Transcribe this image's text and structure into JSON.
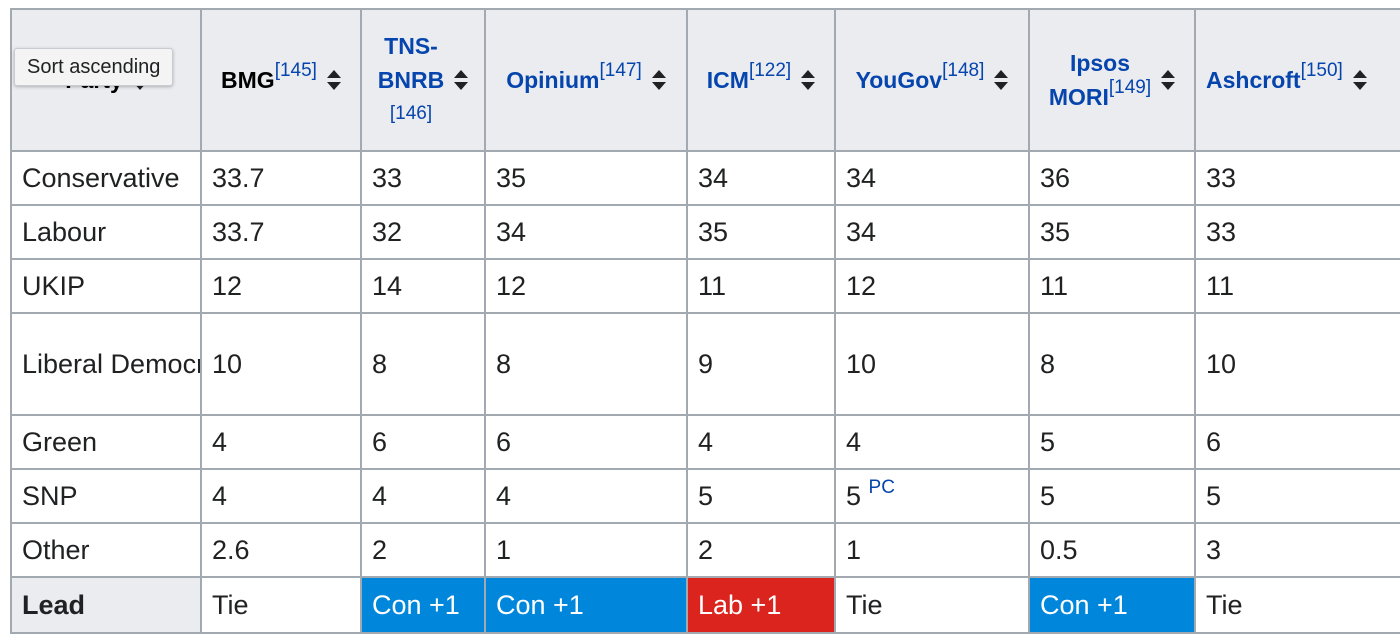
{
  "tooltip": "Sort ascending",
  "header": {
    "party": "Party",
    "pollsters": [
      {
        "name": "BMG",
        "ref": "[145]",
        "link": false
      },
      {
        "name_line1": "TNS-",
        "name_line2": "BNRB",
        "ref": "[146]",
        "link": true
      },
      {
        "name": "Opinium",
        "ref": "[147]",
        "link": true
      },
      {
        "name": "ICM",
        "ref": "[122]",
        "link": true
      },
      {
        "name": "YouGov",
        "ref": "[148]",
        "link": true
      },
      {
        "name_line1": "Ipsos",
        "name_line2": "MORI",
        "ref": "[149]",
        "link": true
      },
      {
        "name": "Ashcroft",
        "ref": "[150]",
        "link": true
      }
    ]
  },
  "rows": [
    {
      "party": "Conservative",
      "values": [
        "33.7",
        "33",
        "35",
        "34",
        "34",
        "36",
        "33"
      ]
    },
    {
      "party": "Labour",
      "values": [
        "33.7",
        "32",
        "34",
        "35",
        "34",
        "35",
        "33"
      ]
    },
    {
      "party": "UKIP",
      "values": [
        "12",
        "14",
        "12",
        "11",
        "12",
        "11",
        "11"
      ]
    },
    {
      "party": "Liberal Democrats",
      "values": [
        "10",
        "8",
        "8",
        "9",
        "10",
        "8",
        "10"
      ]
    },
    {
      "party": "Green",
      "values": [
        "4",
        "6",
        "6",
        "4",
        "4",
        "5",
        "6"
      ]
    },
    {
      "party": "SNP",
      "values": [
        "4",
        "4",
        "4",
        "5",
        "5",
        "5",
        "5"
      ],
      "notes": {
        "youGovNote": "PC"
      }
    },
    {
      "party": "Other",
      "values": [
        "2.6",
        "2",
        "1",
        "2",
        "1",
        "0.5",
        "3"
      ]
    }
  ],
  "lead": {
    "label": "Lead",
    "values": [
      "Tie",
      "Con +1",
      "Con +1",
      "Lab +1",
      "Tie",
      "Con +1",
      "Tie"
    ]
  },
  "colors": {
    "conservative": "#0087dc",
    "labour": "#dc241f",
    "header_bg": "#eaecf0",
    "border": "#a2a9b1",
    "link": "#0645ad"
  }
}
